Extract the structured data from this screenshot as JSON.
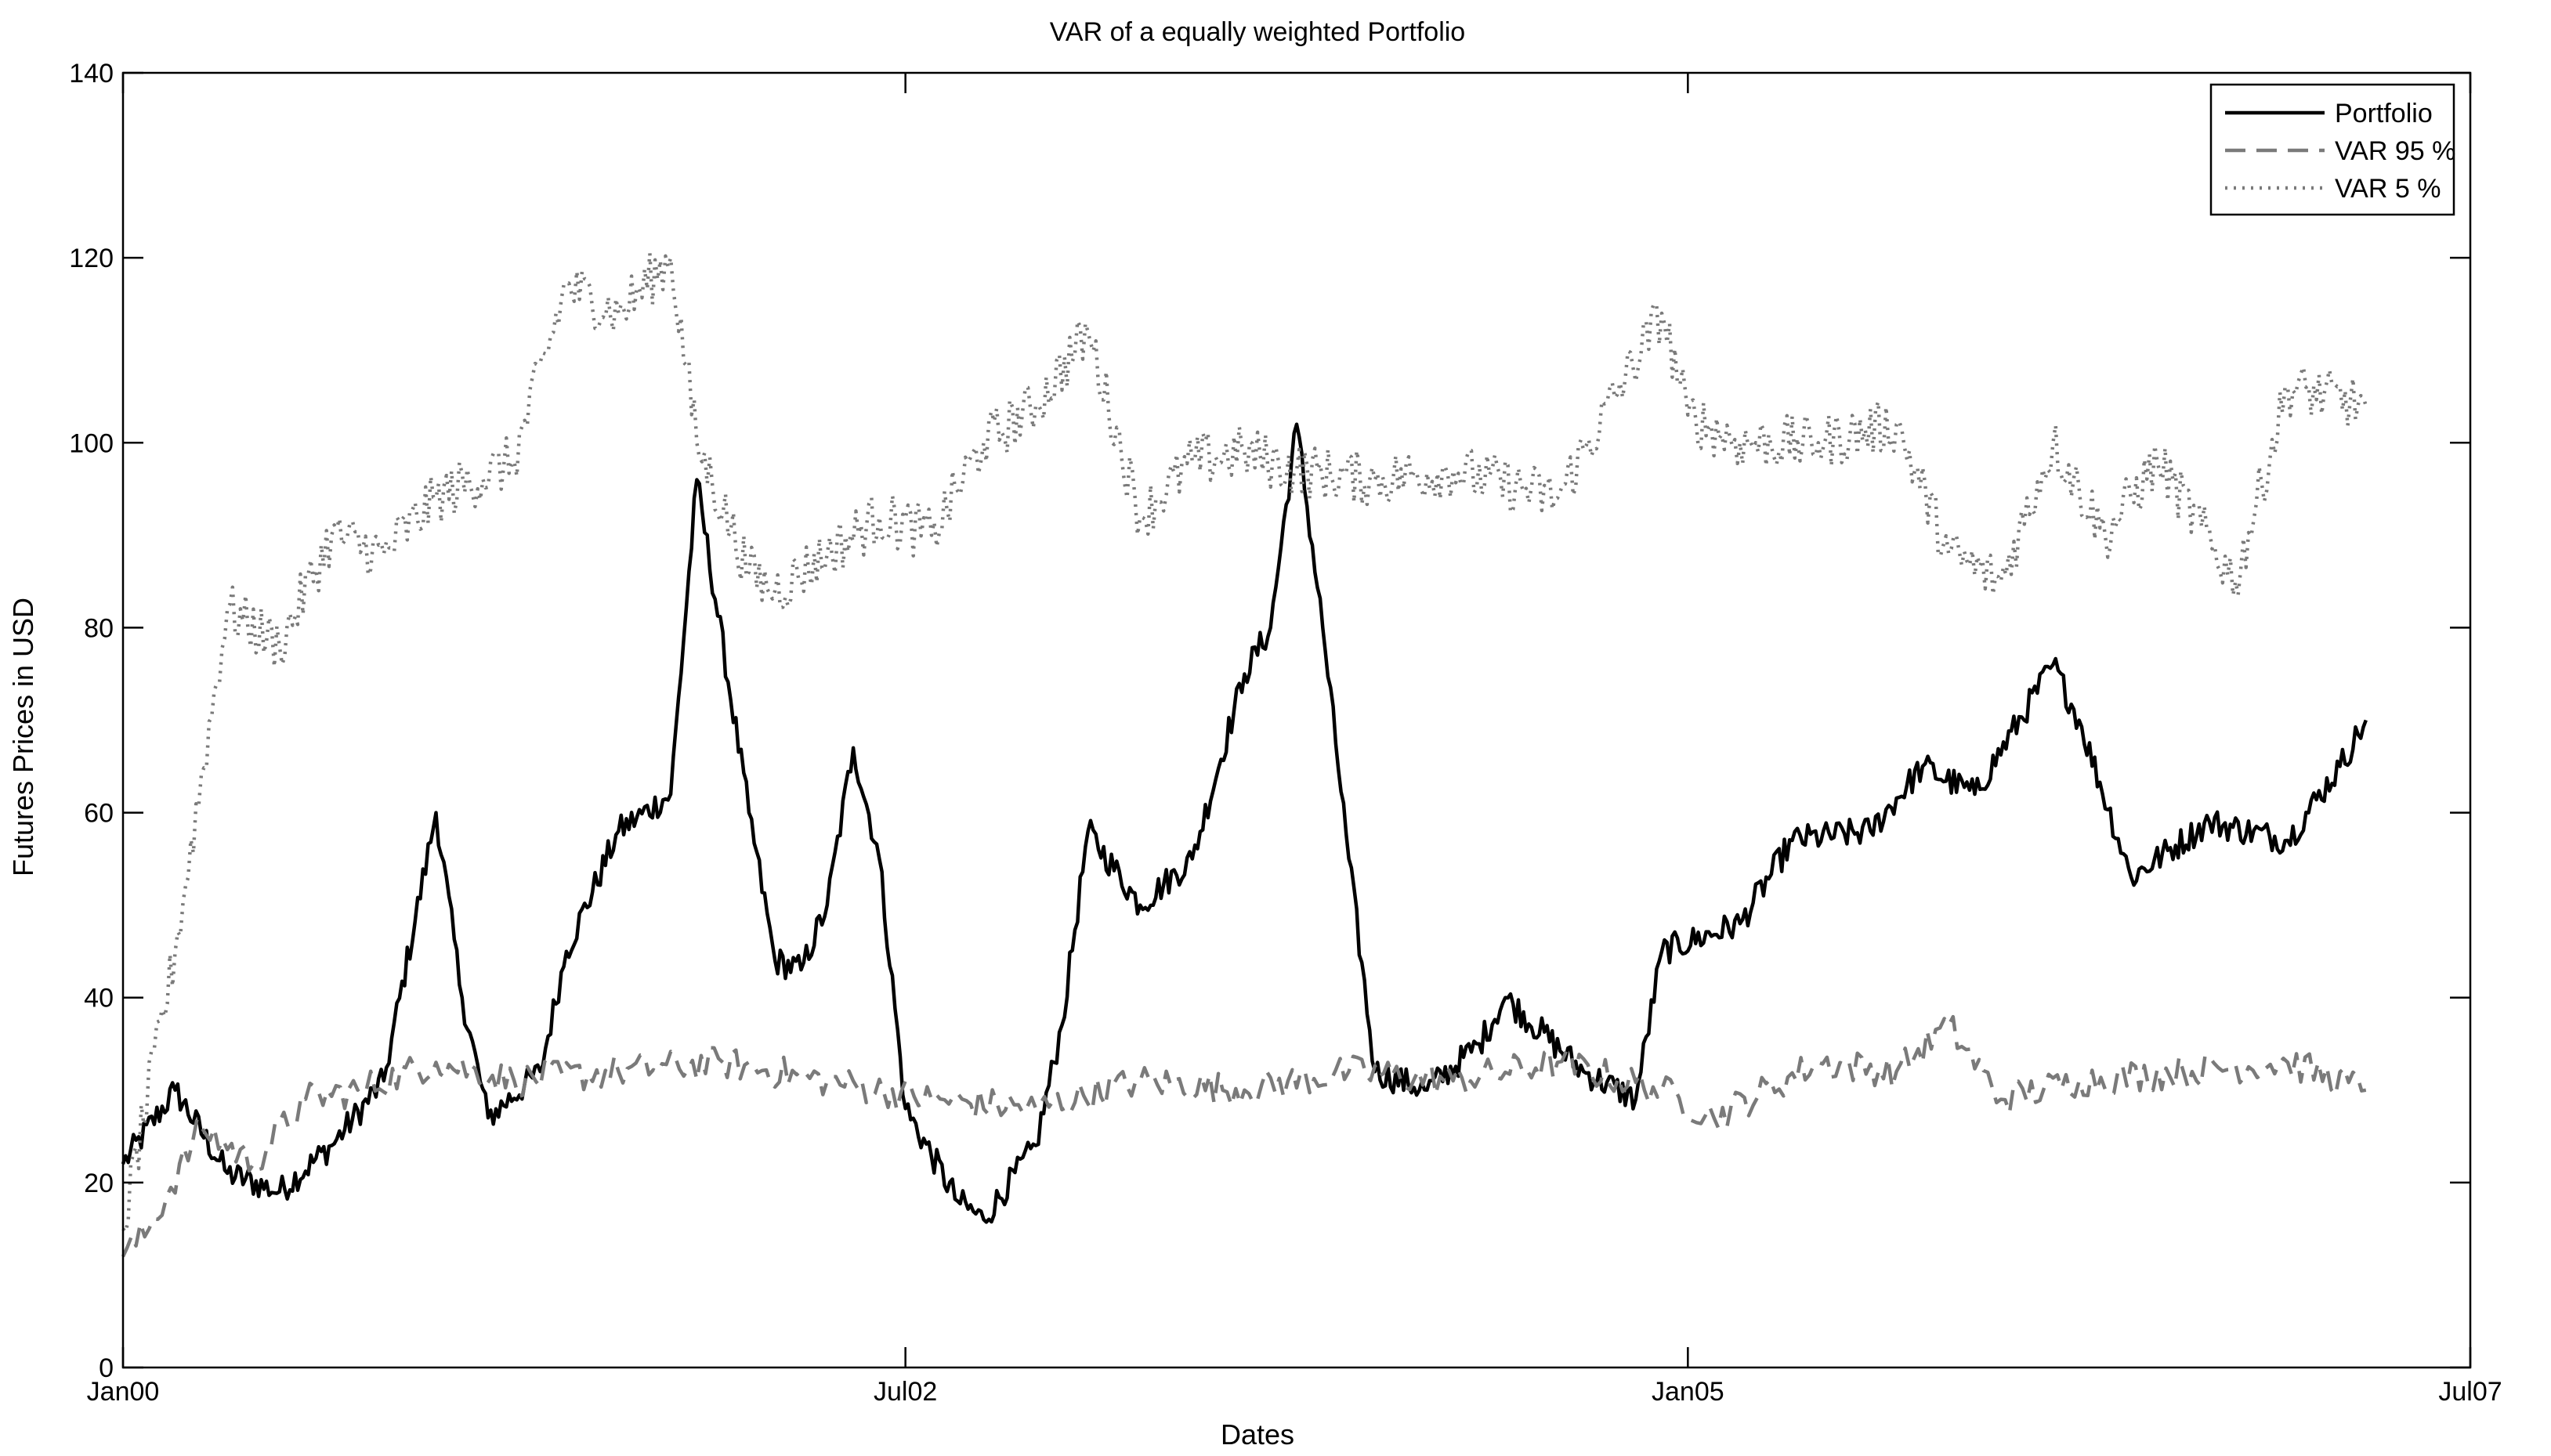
{
  "chart_data": {
    "type": "line",
    "title": "VAR of a equally weighted Portfolio",
    "xlabel": "Dates",
    "ylabel": "Futures Prices in USD",
    "xlim": [
      "Jan00",
      "Jul07"
    ],
    "ylim": [
      0,
      140
    ],
    "xticks": [
      "Jan00",
      "Jul02",
      "Jan05",
      "Jul07"
    ],
    "yticks": [
      "0",
      "20",
      "40",
      "60",
      "80",
      "100",
      "120",
      "140"
    ],
    "grid": false,
    "legend_position": "top-right",
    "series": [
      {
        "name": "Portfolio",
        "style": "solid",
        "color": "#000000",
        "x": [
          "2000-01",
          "2000-03",
          "2000-05",
          "2000-07",
          "2000-09",
          "2000-11",
          "2001-01",
          "2001-02",
          "2001-03",
          "2001-05",
          "2001-06",
          "2001-08",
          "2001-10",
          "2001-11",
          "2002-01",
          "2002-02",
          "2002-03",
          "2002-04",
          "2002-05",
          "2002-06",
          "2002-07",
          "2002-09",
          "2002-10",
          "2002-12",
          "2003-01",
          "2003-02",
          "2003-04",
          "2003-06",
          "2003-08",
          "2003-09",
          "2003-10",
          "2003-11",
          "2003-12",
          "2004-01",
          "2004-03",
          "2004-05",
          "2004-06",
          "2004-09",
          "2004-11",
          "2004-12",
          "2005-03",
          "2005-05",
          "2005-08",
          "2005-10",
          "2005-12",
          "2006-03",
          "2006-04",
          "2006-06",
          "2006-09",
          "2006-12",
          "2007-02",
          "2007-03"
        ],
        "y": [
          22,
          30,
          21,
          19,
          24,
          31,
          60,
          40,
          27,
          32,
          45,
          58,
          62,
          96,
          60,
          44,
          43,
          50,
          67,
          55,
          28,
          18,
          16,
          24,
          37,
          58,
          50,
          55,
          75,
          80,
          102,
          80,
          55,
          32,
          30,
          35,
          40,
          32,
          29,
          45,
          48,
          57,
          58,
          65,
          62,
          76,
          70,
          53,
          59,
          57,
          65,
          70
        ]
      },
      {
        "name": "VAR 95 %",
        "style": "dashed",
        "color": "#7a7a7a",
        "x": [
          "2000-01",
          "2000-02",
          "2000-04",
          "2000-06",
          "2000-08",
          "2000-10",
          "2001-01",
          "2001-04",
          "2001-08",
          "2001-12",
          "2002-04",
          "2002-08",
          "2002-12",
          "2003-04",
          "2003-08",
          "2003-12",
          "2004-04",
          "2004-08",
          "2004-12",
          "2005-02",
          "2005-06",
          "2005-09",
          "2005-11",
          "2006-01",
          "2006-04",
          "2006-08",
          "2006-12",
          "2007-03"
        ],
        "y": [
          12,
          15,
          26,
          22,
          29,
          30,
          33,
          31,
          32,
          33,
          31,
          29,
          28,
          31,
          30,
          32,
          31,
          33,
          30,
          27,
          33,
          32,
          37,
          29,
          31,
          32,
          33,
          30
        ]
      },
      {
        "name": "VAR 5 %",
        "style": "dotted",
        "color": "#7a7a7a",
        "x": [
          "2000-01",
          "2000-03",
          "2000-05",
          "2000-07",
          "2000-09",
          "2000-11",
          "2001-01",
          "2001-04",
          "2001-06",
          "2001-08",
          "2001-10",
          "2001-11",
          "2002-01",
          "2002-02",
          "2002-04",
          "2002-06",
          "2002-08",
          "2002-10",
          "2002-12",
          "2003-02",
          "2003-04",
          "2003-06",
          "2003-08",
          "2003-10",
          "2004-01",
          "2004-04",
          "2004-08",
          "2004-12",
          "2005-01",
          "2005-03",
          "2005-06",
          "2005-09",
          "2005-11",
          "2006-01",
          "2006-03",
          "2006-05",
          "2006-07",
          "2006-10",
          "2006-12",
          "2007-03"
        ],
        "y": [
          15,
          45,
          82,
          78,
          90,
          88,
          94,
          98,
          117,
          114,
          120,
          100,
          86,
          84,
          88,
          92,
          90,
          100,
          104,
          112,
          92,
          98,
          99,
          97,
          96,
          97,
          94,
          114,
          103,
          100,
          100,
          102,
          88,
          85,
          100,
          90,
          98,
          85,
          106,
          104
        ]
      }
    ]
  }
}
